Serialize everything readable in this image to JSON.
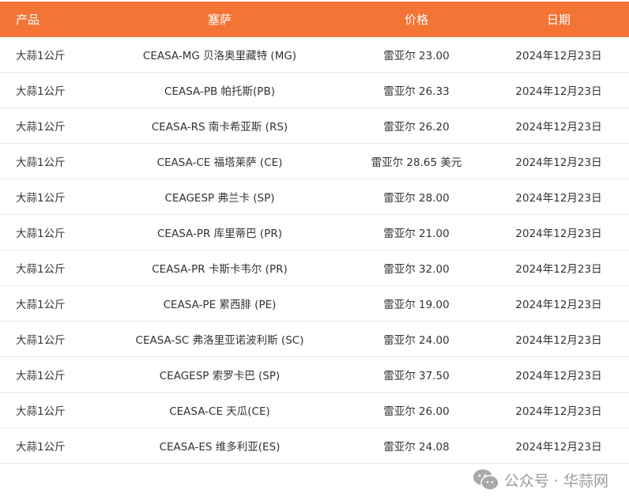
{
  "table": {
    "headers": [
      "产品",
      "塞萨",
      "价格",
      "日期"
    ],
    "rows": [
      [
        "大蒜1公斤",
        "CEASA-MG 贝洛奥里藏特 (MG)",
        "雷亚尔 23.00",
        "2024年12月23日"
      ],
      [
        "大蒜1公斤",
        "CEASA-PB 帕托斯(PB)",
        "雷亚尔 26.33",
        "2024年12月23日"
      ],
      [
        "大蒜1公斤",
        "CEASA-RS 南卡希亚斯 (RS)",
        "雷亚尔 26.20",
        "2024年12月23日"
      ],
      [
        "大蒜1公斤",
        "CEASA-CE 福塔莱萨 (CE)",
        "雷亚尔 28.65 美元",
        "2024年12月23日"
      ],
      [
        "大蒜1公斤",
        "CEAGESP 弗兰卡 (SP)",
        "雷亚尔 28.00",
        "2024年12月23日"
      ],
      [
        "大蒜1公斤",
        "CEASA-PR 库里蒂巴 (PR)",
        "雷亚尔 21.00",
        "2024年12月23日"
      ],
      [
        "大蒜1公斤",
        "CEASA-PR 卡斯卡韦尔 (PR)",
        "雷亚尔 32.00",
        "2024年12月23日"
      ],
      [
        "大蒜1公斤",
        "CEASA-PE 累西腓 (PE)",
        "雷亚尔 19.00",
        "2024年12月23日"
      ],
      [
        "大蒜1公斤",
        "CEASA-SC 弗洛里亚诺波利斯 (SC)",
        "雷亚尔 24.00",
        "2024年12月23日"
      ],
      [
        "大蒜1公斤",
        "CEAGESP 索罗卡巴 (SP)",
        "雷亚尔 37.50",
        "2024年12月23日"
      ],
      [
        "大蒜1公斤",
        "CEASA-CE 天瓜(CE)",
        "雷亚尔 26.00",
        "2024年12月23日"
      ],
      [
        "大蒜1公斤",
        "CEASA-ES 维多利亚(ES)",
        "雷亚尔 24.08",
        "2024年12月23日"
      ]
    ]
  },
  "watermark": {
    "text": "公众号 · 华蒜网",
    "icon": "wechat-icon"
  },
  "colors": {
    "header_bg": "#f37435",
    "header_text": "#ffffff"
  }
}
